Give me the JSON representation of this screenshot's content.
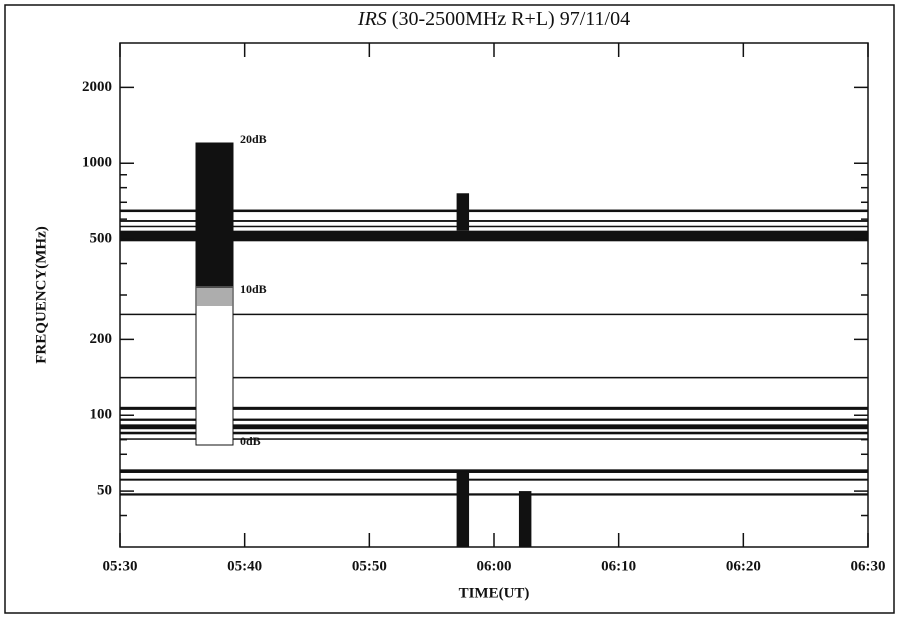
{
  "chart_data": {
    "type": "spectrogram",
    "title_prefix": "IRS",
    "title": "(30-2500MHz R+L) 97/11/04",
    "x_label": "TIME(UT)",
    "y_label": "FREQUENCY(MHz)",
    "xlim": [
      "05:30",
      "06:30"
    ],
    "xticks": [
      "05:30",
      "05:40",
      "05:50",
      "06:00",
      "06:10",
      "06:20",
      "06:30"
    ],
    "ylim": [
      30,
      3000
    ],
    "yscale": "log",
    "yticks": [
      50,
      100,
      200,
      500,
      1000,
      2000
    ],
    "yminor_ticks": [
      40,
      60,
      70,
      80,
      90,
      300,
      400,
      600,
      700,
      800,
      900
    ],
    "color": "#111111",
    "colorbar_labels": [
      "20dB",
      "10dB",
      "0dB"
    ],
    "features": [
      {
        "freq": [
          490,
          540
        ],
        "time": [
          "05:30",
          "06:30"
        ]
      },
      {
        "freq": [
          640,
          655
        ],
        "time": [
          "05:30",
          "06:30"
        ]
      },
      {
        "freq": [
          585,
          595
        ],
        "time": [
          "05:30",
          "06:30"
        ]
      },
      {
        "freq": [
          560,
          565
        ],
        "time": [
          "05:30",
          "06:30"
        ]
      },
      {
        "freq": [
          540,
          760
        ],
        "time": [
          "05:57",
          "05:58"
        ]
      },
      {
        "freq": [
          250,
          253
        ],
        "time": [
          "05:30",
          "06:30"
        ]
      },
      {
        "freq": [
          140,
          142
        ],
        "time": [
          "05:30",
          "06:30"
        ]
      },
      {
        "freq": [
          105,
          108
        ],
        "time": [
          "05:30",
          "06:30"
        ]
      },
      {
        "freq": [
          95,
          97
        ],
        "time": [
          "05:30",
          "06:30"
        ]
      },
      {
        "freq": [
          88,
          92
        ],
        "time": [
          "05:30",
          "06:30"
        ]
      },
      {
        "freq": [
          84,
          86
        ],
        "time": [
          "05:30",
          "06:30"
        ]
      },
      {
        "freq": [
          80,
          81
        ],
        "time": [
          "05:30",
          "06:30"
        ]
      },
      {
        "freq": [
          59,
          61
        ],
        "time": [
          "05:30",
          "06:30"
        ]
      },
      {
        "freq": [
          55,
          56
        ],
        "time": [
          "05:30",
          "06:30"
        ]
      },
      {
        "freq": [
          48,
          49
        ],
        "time": [
          "05:30",
          "06:30"
        ]
      },
      {
        "freq": [
          30,
          60
        ],
        "time": [
          "05:57",
          "05:58"
        ]
      },
      {
        "freq": [
          30,
          50
        ],
        "time": [
          "06:02",
          "06:03"
        ]
      }
    ]
  }
}
